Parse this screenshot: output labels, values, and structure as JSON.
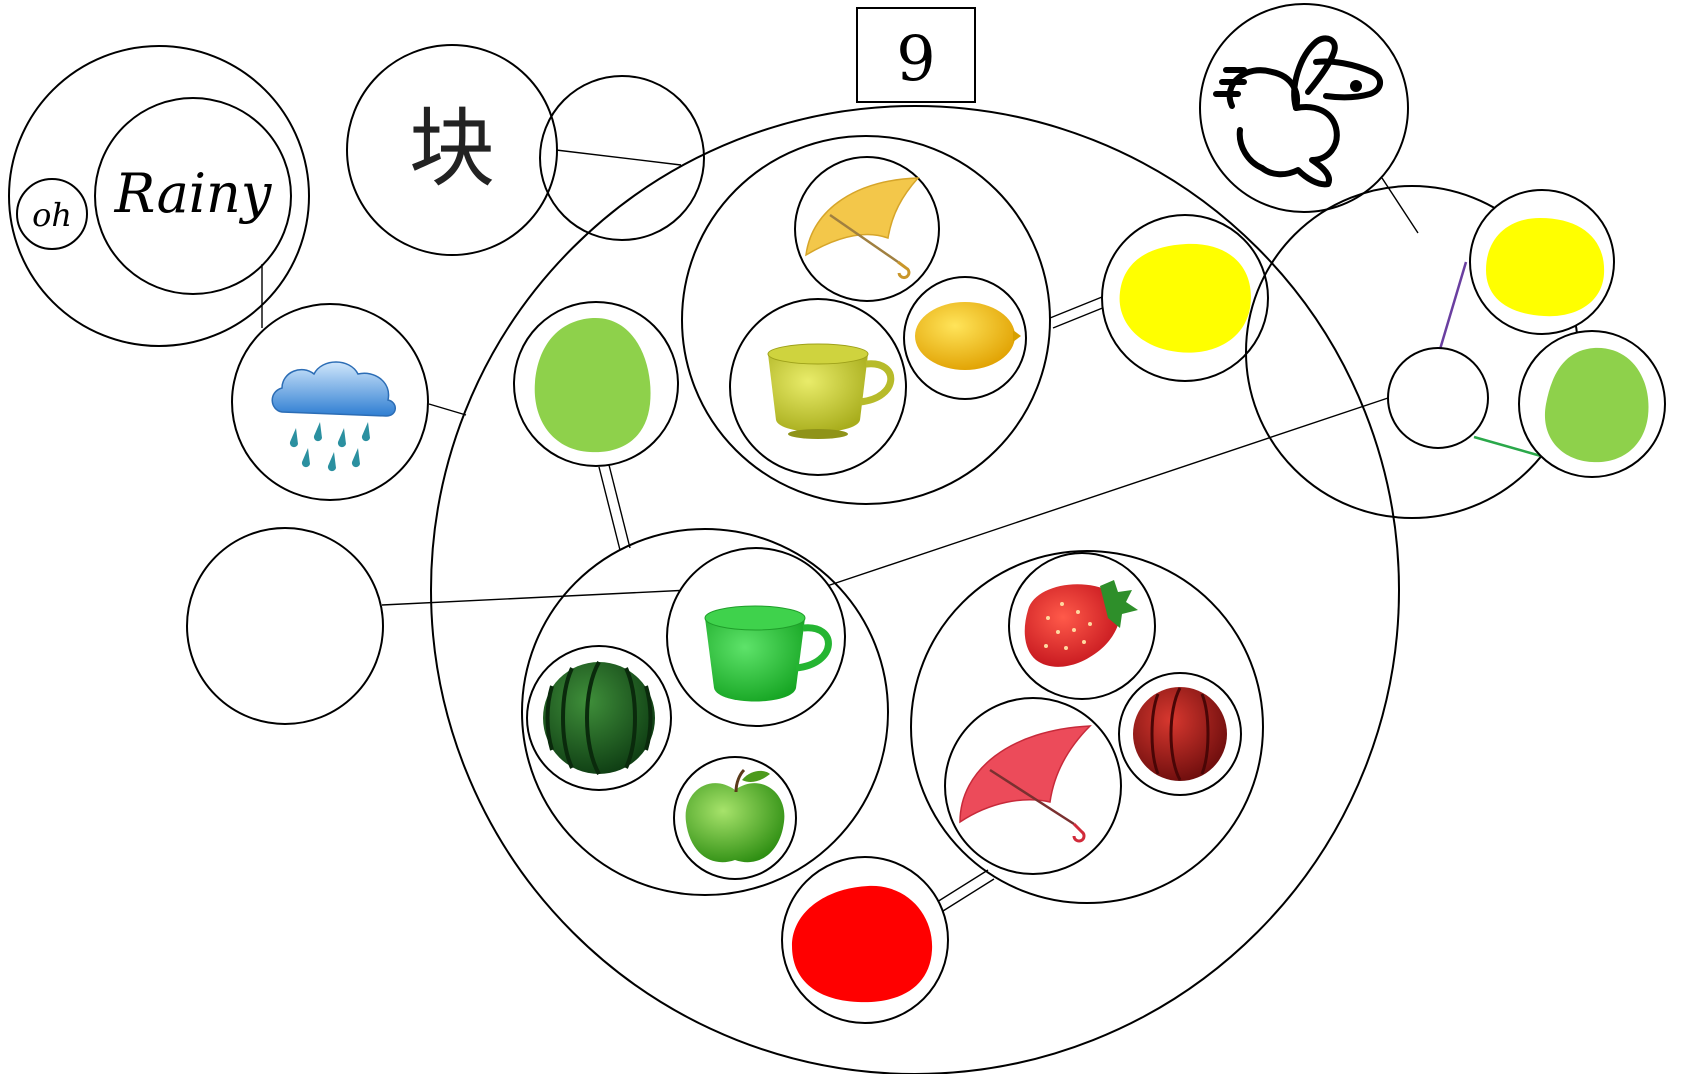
{
  "title_box": {
    "text": "9"
  },
  "word_circle": {
    "small_text": "oh",
    "large_text": "Rainy"
  },
  "char_circle": {
    "text": "块"
  },
  "colors": {
    "yellow": "#ffff00",
    "green_blob": "#8ed14b",
    "red": "#ff0000",
    "purple_edge": "#6a3fa0",
    "green_edge": "#2aa84a"
  },
  "icons": [
    "rain-cloud-icon",
    "rabbit-icon",
    "yellow-umbrella-icon",
    "yellow-cup-icon",
    "lemon-icon",
    "green-cup-icon",
    "watermelon-icon",
    "green-apple-icon",
    "strawberry-icon",
    "red-umbrella-icon",
    "red-watermelon-icon"
  ]
}
